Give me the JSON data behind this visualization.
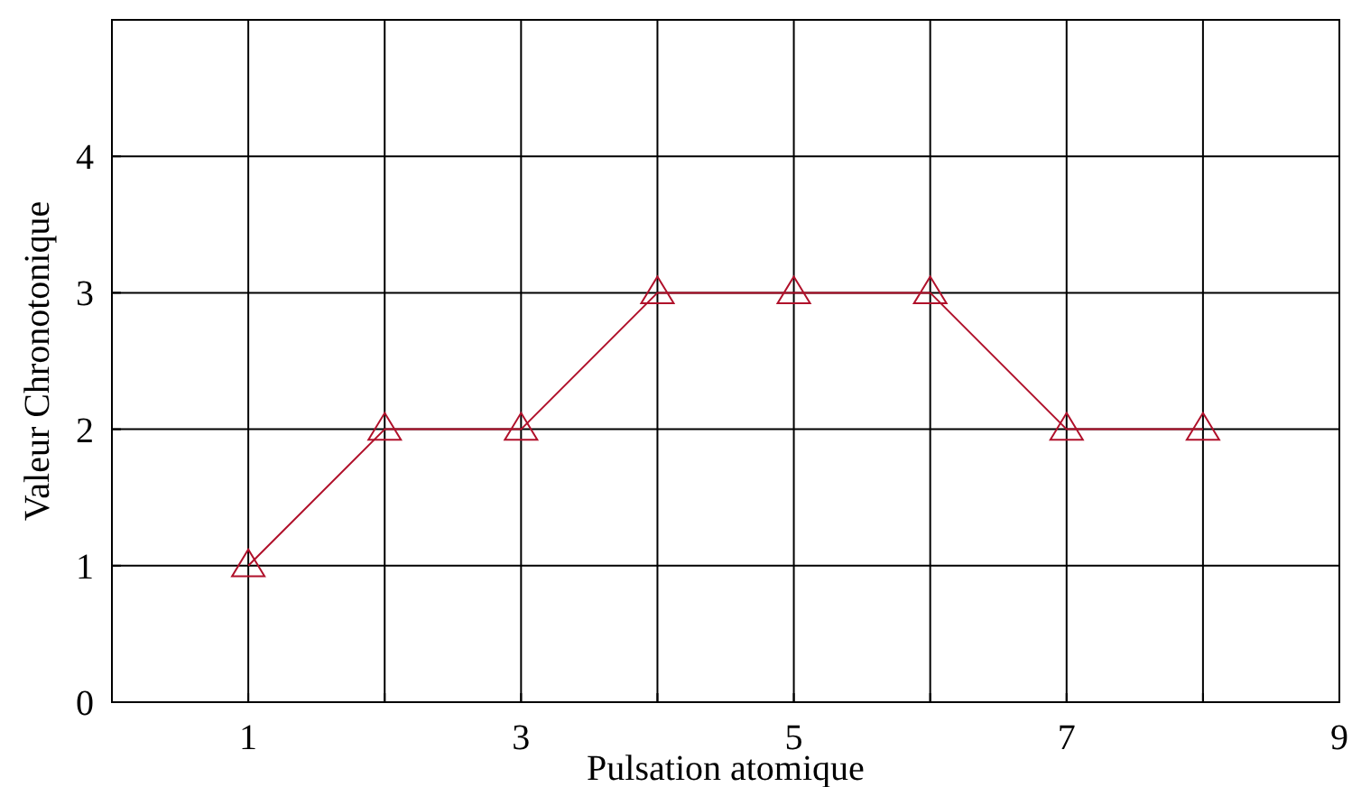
{
  "chart_data": {
    "type": "line",
    "xlabel": "Pulsation atomique",
    "ylabel": "Valeur Chronotonique",
    "x": [
      1,
      2,
      3,
      4,
      5,
      6,
      7,
      8
    ],
    "series": [
      {
        "color": "#b0102a",
        "values": [
          1,
          2,
          2,
          3,
          3,
          3,
          2,
          2
        ]
      }
    ],
    "xlim": [
      0,
      9
    ],
    "ylim": [
      0,
      5
    ],
    "xticks": [
      1,
      {
        "value": 2,
        "label": null
      },
      3,
      {
        "value": 4,
        "label": null
      },
      5,
      {
        "value": 6,
        "label": null
      },
      7,
      {
        "value": 8,
        "label": null
      },
      9
    ],
    "yticks": [
      0,
      1,
      2,
      3,
      4
    ],
    "grid": true,
    "marker": "triangle",
    "line_style": "solid"
  }
}
